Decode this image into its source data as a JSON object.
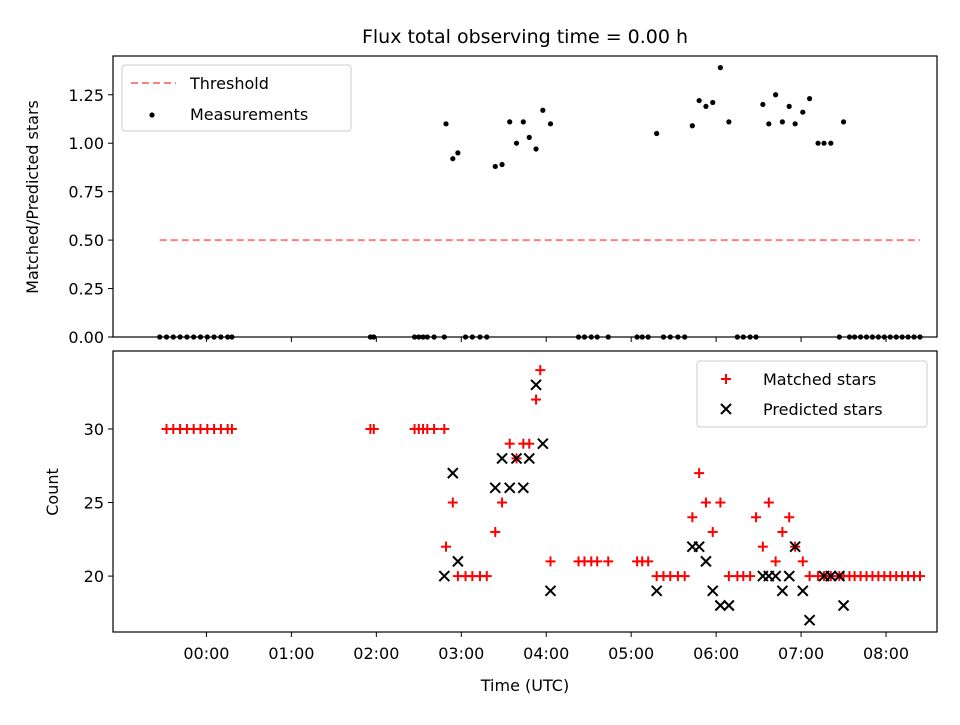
{
  "chart_data": [
    {
      "type": "scatter",
      "title": "Flux total observing time = 0.00 h",
      "xlabel": "",
      "ylabel": "Matched/Predicted stars",
      "ylim": [
        0,
        1.45
      ],
      "yticks": [
        "0.00",
        "0.25",
        "0.50",
        "0.75",
        "1.00",
        "1.25"
      ],
      "yticks_values": [
        0,
        0.25,
        0.5,
        0.75,
        1.0,
        1.25
      ],
      "legend_position": "upper-left",
      "series": [
        {
          "name": "Threshold",
          "kind": "line",
          "style": "dashed",
          "color": "#ff7f7f",
          "x": [
            -0.55,
            8.4
          ],
          "y": [
            0.5,
            0.5
          ]
        },
        {
          "name": "Measurements",
          "kind": "scatter",
          "color": "#000000",
          "x": [
            -0.55,
            -0.47,
            -0.39,
            -0.31,
            -0.23,
            -0.15,
            -0.07,
            0.01,
            0.09,
            0.17,
            0.25,
            0.3,
            1.93,
            1.97,
            2.45,
            2.5,
            2.55,
            2.6,
            2.68,
            2.8,
            2.82,
            2.9,
            2.96,
            3.05,
            3.13,
            3.22,
            3.3,
            3.4,
            3.48,
            3.57,
            3.65,
            3.73,
            3.8,
            3.88,
            3.96,
            4.05,
            4.38,
            4.45,
            4.53,
            4.6,
            4.73,
            5.07,
            5.13,
            5.2,
            5.3,
            5.38,
            5.46,
            5.55,
            5.63,
            5.72,
            5.8,
            5.88,
            5.96,
            6.05,
            6.15,
            6.25,
            6.32,
            6.4,
            6.47,
            6.55,
            6.62,
            6.7,
            6.78,
            6.86,
            6.93,
            7.02,
            7.1,
            7.2,
            7.27,
            7.35,
            7.45,
            7.5,
            7.57,
            7.63,
            7.7,
            7.77,
            7.84,
            7.91,
            7.98,
            8.05,
            8.12,
            8.19,
            8.26,
            8.33,
            8.4
          ],
          "y": [
            0,
            0,
            0,
            0,
            0,
            0,
            0,
            0,
            0,
            0,
            0,
            0,
            0,
            0,
            0,
            0,
            0,
            0,
            0,
            0,
            1.1,
            0.92,
            0.95,
            0,
            0,
            0,
            0,
            0.88,
            0.89,
            1.11,
            1.0,
            1.11,
            1.03,
            0.97,
            1.17,
            1.1,
            0,
            0,
            0,
            0,
            0,
            0,
            0,
            0,
            1.05,
            0,
            0,
            0,
            0,
            1.09,
            1.22,
            1.19,
            1.21,
            1.39,
            1.11,
            0,
            0,
            0,
            0,
            1.2,
            1.1,
            1.25,
            1.11,
            1.19,
            1.1,
            1.16,
            1.23,
            1.0,
            1.0,
            1.0,
            0,
            1.11,
            0,
            0,
            0,
            0,
            0,
            0,
            0,
            0,
            0,
            0,
            0,
            0,
            0
          ]
        }
      ]
    },
    {
      "type": "scatter",
      "title": "",
      "xlabel": "Time (UTC)",
      "ylabel": "Count",
      "xlim": [
        -1.1,
        8.6
      ],
      "ylim": [
        16.2,
        35.3
      ],
      "yticks": [
        "20",
        "25",
        "30"
      ],
      "yticks_values": [
        20,
        25,
        30
      ],
      "xticks": [
        "00:00",
        "01:00",
        "02:00",
        "03:00",
        "04:00",
        "05:00",
        "06:00",
        "07:00",
        "08:00"
      ],
      "xticks_values": [
        0,
        1,
        2,
        3,
        4,
        5,
        6,
        7,
        8
      ],
      "legend_position": "upper-right",
      "series": [
        {
          "name": "Matched stars",
          "kind": "plus",
          "color": "#ff0000",
          "x": [
            -0.47,
            -0.39,
            -0.31,
            -0.23,
            -0.15,
            -0.07,
            0.01,
            0.09,
            0.17,
            0.25,
            0.3,
            1.93,
            1.97,
            2.45,
            2.5,
            2.55,
            2.6,
            2.68,
            2.8,
            2.82,
            2.9,
            2.96,
            3.05,
            3.13,
            3.22,
            3.3,
            3.4,
            3.48,
            3.57,
            3.65,
            3.73,
            3.8,
            3.88,
            3.93,
            4.05,
            4.38,
            4.45,
            4.53,
            4.6,
            4.73,
            5.07,
            5.13,
            5.2,
            5.3,
            5.38,
            5.46,
            5.55,
            5.63,
            5.72,
            5.8,
            5.88,
            5.96,
            6.05,
            6.15,
            6.25,
            6.32,
            6.4,
            6.47,
            6.55,
            6.62,
            6.7,
            6.78,
            6.86,
            6.93,
            7.02,
            7.1,
            7.2,
            7.27,
            7.35,
            7.45,
            7.5,
            7.57,
            7.63,
            7.7,
            7.77,
            7.84,
            7.91,
            7.98,
            8.05,
            8.12,
            8.19,
            8.26,
            8.33,
            8.4
          ],
          "y": [
            30,
            30,
            30,
            30,
            30,
            30,
            30,
            30,
            30,
            30,
            30,
            30,
            30,
            30,
            30,
            30,
            30,
            30,
            30,
            22,
            25,
            20,
            20,
            20,
            20,
            20,
            23,
            25,
            29,
            28,
            29,
            29,
            32,
            34,
            21,
            21,
            21,
            21,
            21,
            21,
            21,
            21,
            21,
            20,
            20,
            20,
            20,
            20,
            24,
            27,
            25,
            23,
            25,
            20,
            20,
            20,
            20,
            24,
            22,
            25,
            21,
            23,
            24,
            22,
            21,
            20,
            20,
            20,
            20,
            20,
            20,
            20,
            20,
            20,
            20,
            20,
            20,
            20,
            20,
            20,
            20,
            20,
            20,
            20
          ]
        },
        {
          "name": "Predicted stars",
          "kind": "x",
          "color": "#000000",
          "x": [
            2.8,
            2.9,
            2.96,
            3.4,
            3.48,
            3.57,
            3.65,
            3.73,
            3.8,
            3.88,
            3.96,
            4.05,
            5.3,
            5.72,
            5.8,
            5.88,
            5.96,
            6.05,
            6.15,
            6.55,
            6.62,
            6.7,
            6.78,
            6.86,
            6.93,
            7.02,
            7.1,
            7.27,
            7.35,
            7.45,
            7.5
          ],
          "y": [
            20,
            27,
            21,
            26,
            28,
            26,
            28,
            26,
            28,
            33,
            29,
            19,
            19,
            22,
            22,
            21,
            19,
            18,
            18,
            20,
            20,
            20,
            19,
            20,
            22,
            19,
            17,
            20,
            20,
            20,
            18
          ]
        }
      ]
    }
  ]
}
